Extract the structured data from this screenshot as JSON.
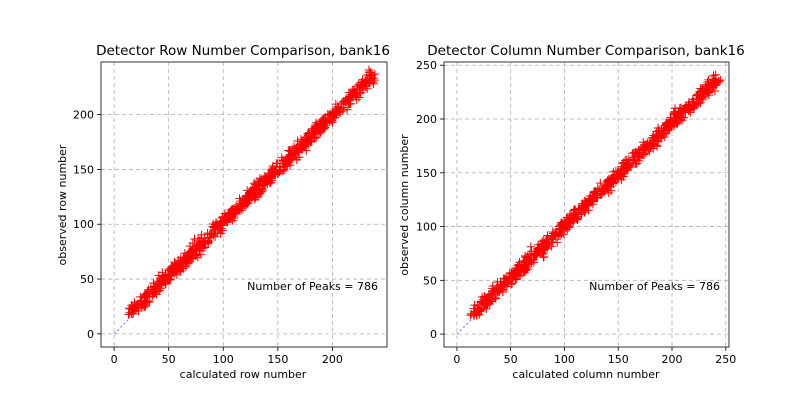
{
  "chart_data": [
    {
      "type": "scatter",
      "title": "Detector Row Number Comparison, bank16",
      "xlabel": "calculated row number",
      "ylabel": "observed row number",
      "xlim": [
        -12,
        250
      ],
      "ylim": [
        -12,
        248
      ],
      "xticks": [
        0,
        50,
        100,
        150,
        200
      ],
      "yticks": [
        0,
        50,
        100,
        150,
        200
      ],
      "grid": true,
      "annotation": "Number of Peaks = 786",
      "series": [
        {
          "marker": "+",
          "color": "#ff0000",
          "x_range": [
            16,
            238
          ],
          "y_range": [
            20,
            236
          ],
          "count": 786,
          "spread": 5
        }
      ],
      "reference_line": {
        "from": [
          0,
          0
        ],
        "to": [
          16,
          16
        ],
        "color": "#8080ff",
        "style": "dotted"
      }
    },
    {
      "type": "scatter",
      "title": "Detector Column Number Comparison, bank16",
      "xlabel": "calculated column number",
      "ylabel": "observed column number",
      "xlim": [
        -12,
        253
      ],
      "ylim": [
        -12,
        253
      ],
      "xticks": [
        0,
        50,
        100,
        150,
        200,
        250
      ],
      "yticks": [
        0,
        50,
        100,
        150,
        200,
        250
      ],
      "grid": true,
      "annotation": "Number of Peaks = 786",
      "series": [
        {
          "marker": "+",
          "color": "#ff0000",
          "x_range": [
            16,
            242
          ],
          "y_range": [
            19,
            237
          ],
          "count": 786,
          "spread": 5
        }
      ],
      "reference_line": {
        "from": [
          0,
          0
        ],
        "to": [
          18,
          18
        ],
        "color": "#8080ff",
        "style": "dotted"
      }
    }
  ]
}
